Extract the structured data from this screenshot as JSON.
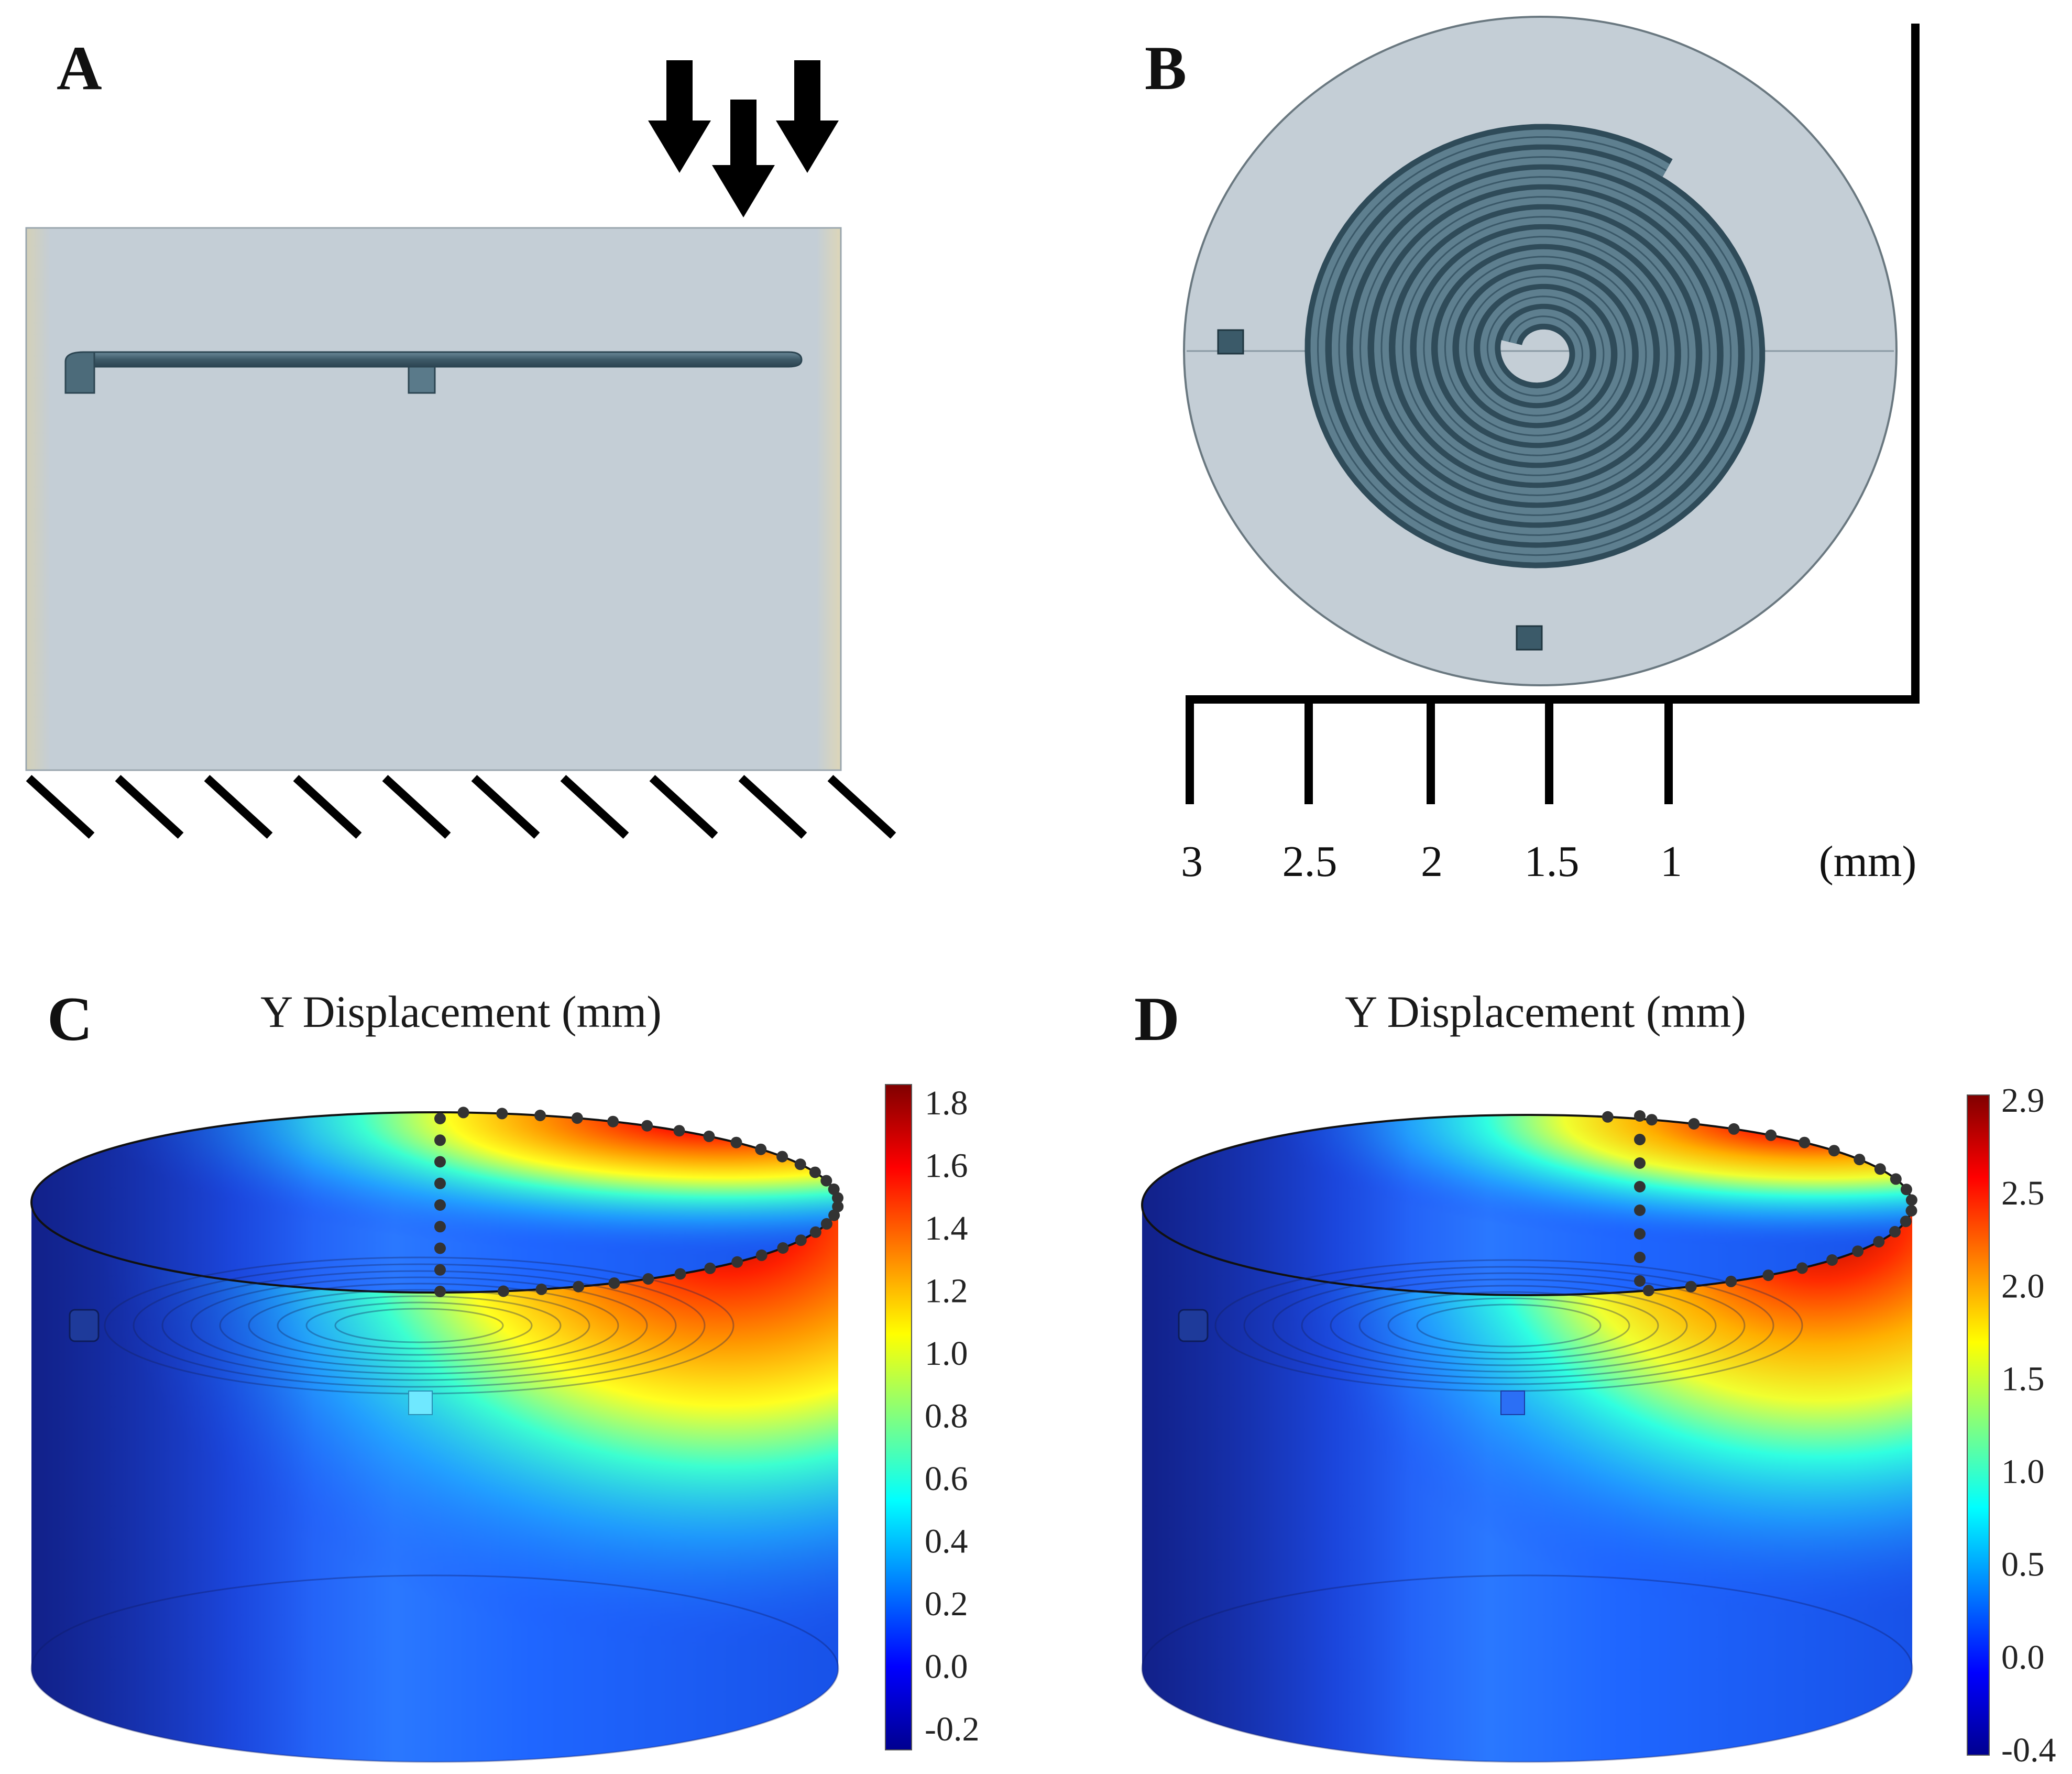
{
  "panels": {
    "a": {
      "letter": "A"
    },
    "b": {
      "letter": "B",
      "scale_labels": [
        "3",
        "2.5",
        "2",
        "1.5",
        "1"
      ],
      "unit": "(mm)"
    },
    "c": {
      "letter": "C",
      "title": "Y Displacement (mm)",
      "colorbar_ticks": [
        "1.8",
        "1.6",
        "1.4",
        "1.2",
        "1.0",
        "0.8",
        "0.6",
        "0.4",
        "0.2",
        "0.0",
        "-0.2"
      ]
    },
    "d": {
      "letter": "D",
      "title": "Y Displacement (mm)",
      "colorbar_ticks": [
        "2.9",
        "2.5",
        "2.0",
        "1.5",
        "1.0",
        "0.5",
        "0.0",
        "-0.4"
      ]
    }
  },
  "colors": {
    "model_gray": "#c6d2da",
    "channel": "#4f6f7f",
    "channel_dark": "#2f4b59",
    "jet_low": "#00008f",
    "jet_mid": "#00ffff",
    "jet_high": "#800000"
  }
}
